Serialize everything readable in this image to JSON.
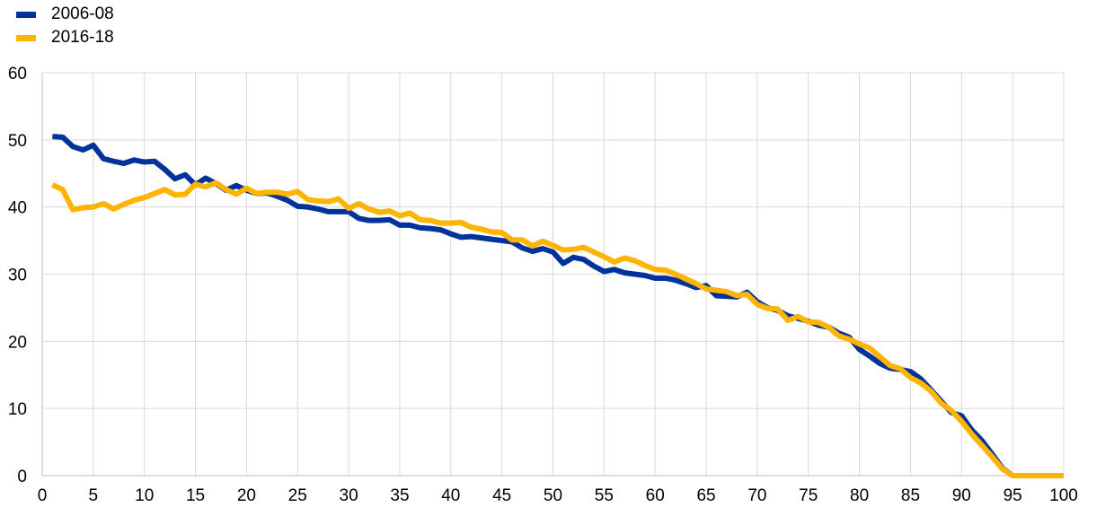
{
  "chart_data": {
    "type": "line",
    "title": "",
    "xlabel": "",
    "ylabel": "",
    "xlim": [
      0,
      100
    ],
    "ylim": [
      0,
      60
    ],
    "x_ticks": [
      "0",
      "5",
      "10",
      "15",
      "20",
      "25",
      "30",
      "35",
      "40",
      "45",
      "50",
      "55",
      "60",
      "65",
      "70",
      "75",
      "80",
      "85",
      "90",
      "95",
      "100"
    ],
    "y_ticks": [
      "0",
      "10",
      "20",
      "30",
      "40",
      "50",
      "60"
    ],
    "grid": true,
    "legend_position": "top-left",
    "x": [
      1,
      2,
      3,
      4,
      5,
      6,
      7,
      8,
      9,
      10,
      11,
      12,
      13,
      14,
      15,
      16,
      17,
      18,
      19,
      20,
      21,
      22,
      23,
      24,
      25,
      26,
      27,
      28,
      29,
      30,
      31,
      32,
      33,
      34,
      35,
      36,
      37,
      38,
      39,
      40,
      41,
      42,
      43,
      44,
      45,
      46,
      47,
      48,
      49,
      50,
      51,
      52,
      53,
      54,
      55,
      56,
      57,
      58,
      59,
      60,
      61,
      62,
      63,
      64,
      65,
      66,
      67,
      68,
      69,
      70,
      71,
      72,
      73,
      74,
      75,
      76,
      77,
      78,
      79,
      80,
      81,
      82,
      83,
      84,
      85,
      86,
      87,
      88,
      89,
      90,
      91,
      92,
      93,
      94,
      95,
      96,
      97,
      98,
      99,
      100
    ],
    "series": [
      {
        "name": "2006-08",
        "color": "#003399",
        "values": [
          50.5,
          50.4,
          49.0,
          48.5,
          49.2,
          47.2,
          46.8,
          46.5,
          47.0,
          46.7,
          46.8,
          45.6,
          44.2,
          44.8,
          43.3,
          44.3,
          43.5,
          42.5,
          43.2,
          42.5,
          42.0,
          42.1,
          41.6,
          41.0,
          40.1,
          40.0,
          39.7,
          39.3,
          39.3,
          39.3,
          38.3,
          38.0,
          38.0,
          38.1,
          37.3,
          37.3,
          36.9,
          36.8,
          36.6,
          36.0,
          35.5,
          35.6,
          35.4,
          35.2,
          35.0,
          34.8,
          33.9,
          33.4,
          33.8,
          33.3,
          31.6,
          32.5,
          32.2,
          31.2,
          30.4,
          30.7,
          30.2,
          30.0,
          29.8,
          29.4,
          29.4,
          29.1,
          28.6,
          28.0,
          28.3,
          26.8,
          26.7,
          26.6,
          27.3,
          25.9,
          25.0,
          24.6,
          23.8,
          23.4,
          23.0,
          22.4,
          22.1,
          21.2,
          20.6,
          18.8,
          17.8,
          16.7,
          16.0,
          15.8,
          15.5,
          14.4,
          12.8,
          11.1,
          9.4,
          8.9,
          6.8,
          5.2,
          3.2,
          1.1,
          0,
          0,
          0,
          0,
          0,
          0
        ]
      },
      {
        "name": "2016-18",
        "color": "#FFB400",
        "values": [
          43.3,
          42.6,
          39.6,
          39.9,
          40.0,
          40.5,
          39.7,
          40.4,
          41.0,
          41.4,
          42.0,
          42.6,
          41.8,
          41.9,
          43.4,
          43.0,
          43.6,
          42.6,
          41.9,
          42.8,
          42.0,
          42.2,
          42.2,
          41.9,
          42.3,
          41.1,
          40.9,
          40.8,
          41.2,
          39.8,
          40.5,
          39.7,
          39.2,
          39.4,
          38.7,
          39.1,
          38.1,
          38.0,
          37.6,
          37.6,
          37.7,
          37.0,
          36.7,
          36.3,
          36.2,
          35.1,
          35.1,
          34.2,
          34.9,
          34.3,
          33.6,
          33.7,
          34.0,
          33.3,
          32.6,
          31.8,
          32.4,
          32.0,
          31.3,
          30.7,
          30.6,
          30.0,
          29.3,
          28.6,
          27.8,
          27.6,
          27.4,
          26.8,
          27.0,
          25.5,
          24.9,
          24.8,
          23.1,
          23.7,
          22.9,
          22.8,
          22.1,
          20.8,
          20.3,
          19.6,
          19.0,
          17.7,
          16.4,
          15.9,
          14.6,
          13.8,
          12.6,
          10.8,
          9.7,
          8.1,
          6.2,
          4.5,
          2.8,
          1.0,
          0,
          0,
          0,
          0,
          0,
          0
        ]
      }
    ]
  }
}
